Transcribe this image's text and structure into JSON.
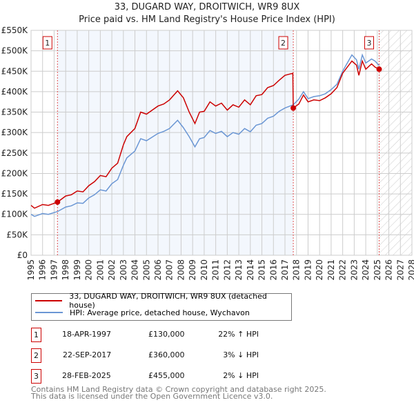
{
  "header": {
    "title": "33, DUGARD WAY, DROITWICH, WR9 8UX",
    "subtitle": "Price paid vs. HM Land Registry's House Price Index (HPI)"
  },
  "chart_data": {
    "type": "line",
    "title": "33, DUGARD WAY, DROITWICH, WR9 8UX",
    "subtitle": "Price paid vs. HM Land Registry's House Price Index (HPI)",
    "xlim": [
      1995,
      2028
    ],
    "ylim": [
      0,
      550000
    ],
    "x_ticks": [
      "1995",
      "1996",
      "1997",
      "1998",
      "1999",
      "2000",
      "2001",
      "2002",
      "2003",
      "2004",
      "2005",
      "2006",
      "2007",
      "2008",
      "2009",
      "2010",
      "2011",
      "2012",
      "2013",
      "2014",
      "2015",
      "2016",
      "2017",
      "2018",
      "2019",
      "2020",
      "2021",
      "2022",
      "2023",
      "2024",
      "2025",
      "2026",
      "2027",
      "2028"
    ],
    "y_ticks": [
      {
        "v": 0,
        "label": "£0"
      },
      {
        "v": 50000,
        "label": "£50K"
      },
      {
        "v": 100000,
        "label": "£100K"
      },
      {
        "v": 150000,
        "label": "£150K"
      },
      {
        "v": 200000,
        "label": "£200K"
      },
      {
        "v": 250000,
        "label": "£250K"
      },
      {
        "v": 300000,
        "label": "£300K"
      },
      {
        "v": 350000,
        "label": "£350K"
      },
      {
        "v": 400000,
        "label": "£400K"
      },
      {
        "v": 450000,
        "label": "£450K"
      },
      {
        "v": 500000,
        "label": "£500K"
      },
      {
        "v": 550000,
        "label": "£550K"
      }
    ],
    "grid": true,
    "series": [
      {
        "name": "33, DUGARD WAY, DROITWICH, WR9 8UX (detached house)",
        "color": "#cc0000",
        "x": [
          1995,
          1995.3,
          1996,
          1996.5,
          1997.3,
          1998,
          1998.5,
          1999,
          1999.5,
          2000,
          2000.5,
          2001,
          2001.5,
          2002,
          2002.5,
          2003,
          2003.3,
          2004,
          2004.5,
          2005,
          2006,
          2006.5,
          2007,
          2007.7,
          2008.2,
          2008.7,
          2009.2,
          2009.6,
          2010,
          2010.5,
          2011,
          2011.5,
          2012,
          2012.5,
          2013,
          2013.5,
          2014,
          2014.5,
          2015,
          2015.5,
          2016,
          2016.5,
          2017,
          2017.68,
          2017.72,
          2018.2,
          2018.6,
          2019,
          2019.5,
          2020,
          2020.5,
          2021,
          2021.5,
          2022,
          2022.4,
          2022.8,
          2023.2,
          2023.4,
          2023.7,
          2024,
          2024.5,
          2024.8,
          2025.16
        ],
        "y": [
          122000,
          115000,
          124000,
          122000,
          130000,
          145000,
          148000,
          157000,
          155000,
          170000,
          180000,
          195000,
          192000,
          213000,
          225000,
          270000,
          290000,
          310000,
          350000,
          345000,
          365000,
          370000,
          380000,
          402000,
          385000,
          350000,
          322000,
          350000,
          352000,
          375000,
          365000,
          372000,
          355000,
          368000,
          362000,
          380000,
          368000,
          390000,
          393000,
          410000,
          415000,
          428000,
          440000,
          445000,
          360000,
          370000,
          392000,
          375000,
          380000,
          378000,
          385000,
          395000,
          410000,
          445000,
          460000,
          475000,
          465000,
          440000,
          475000,
          455000,
          468000,
          460000,
          455000
        ]
      },
      {
        "name": "HPI: Average price, detached house, Wychavon",
        "color": "#6a96d4",
        "x": [
          1995,
          1995.3,
          1996,
          1996.5,
          1997.3,
          1998,
          1998.5,
          1999,
          1999.5,
          2000,
          2000.5,
          2001,
          2001.5,
          2002,
          2002.5,
          2003,
          2003.3,
          2004,
          2004.5,
          2005,
          2006,
          2006.5,
          2007,
          2007.7,
          2008.2,
          2008.7,
          2009.2,
          2009.6,
          2010,
          2010.5,
          2011,
          2011.5,
          2012,
          2012.5,
          2013,
          2013.5,
          2014,
          2014.5,
          2015,
          2015.5,
          2016,
          2016.5,
          2017,
          2017.72,
          2018.2,
          2018.6,
          2019,
          2019.5,
          2020,
          2020.5,
          2021,
          2021.5,
          2022,
          2022.4,
          2022.8,
          2023.2,
          2023.4,
          2023.7,
          2024,
          2024.5,
          2024.8,
          2025.16
        ],
        "y": [
          100000,
          95000,
          102000,
          100000,
          107000,
          118000,
          121000,
          128000,
          127000,
          140000,
          148000,
          160000,
          157000,
          175000,
          185000,
          220000,
          238000,
          255000,
          285000,
          280000,
          298000,
          303000,
          310000,
          330000,
          312000,
          290000,
          265000,
          285000,
          288000,
          305000,
          298000,
          303000,
          290000,
          300000,
          296000,
          310000,
          302000,
          318000,
          322000,
          335000,
          340000,
          352000,
          360000,
          368000,
          382000,
          400000,
          383000,
          388000,
          390000,
          395000,
          405000,
          418000,
          450000,
          470000,
          490000,
          478000,
          455000,
          490000,
          470000,
          480000,
          475000,
          464000
        ]
      }
    ],
    "sales": [
      {
        "id": "1",
        "x": 1997.29,
        "y": 130000,
        "date": "18-APR-1997",
        "price": "£130,000",
        "hpi": "22% ↑ HPI"
      },
      {
        "id": "2",
        "x": 2017.72,
        "y": 360000,
        "date": "22-SEP-2017",
        "price": "£360,000",
        "hpi": "3% ↓ HPI"
      },
      {
        "id": "3",
        "x": 2025.16,
        "y": 455000,
        "date": "28-FEB-2025",
        "price": "£455,000",
        "hpi": "2% ↓ HPI"
      }
    ],
    "legend_position": "below"
  },
  "legend": {
    "property": "33, DUGARD WAY, DROITWICH, WR9 8UX (detached house)",
    "hpi": "HPI: Average price, detached house, Wychavon"
  },
  "footer": {
    "line1": "Contains HM Land Registry data © Crown copyright and database right 2025.",
    "line2": "This data is licensed under the Open Government Licence v3.0."
  }
}
